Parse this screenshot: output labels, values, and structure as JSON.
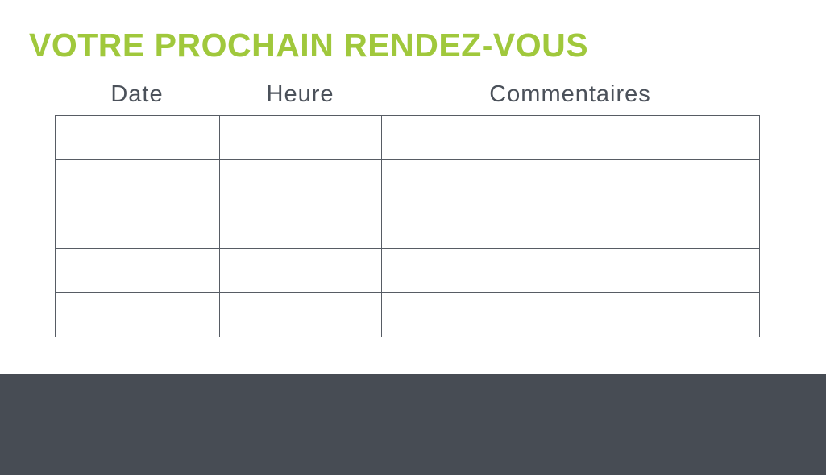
{
  "colors": {
    "accent-green": "#a0c83c",
    "footer-dark": "#474c54",
    "table-border": "#575c64",
    "header-text": "#4b515a"
  },
  "page": {
    "title": "VOTRE PROCHAIN RENDEZ-VOUS"
  },
  "table": {
    "columns": [
      {
        "label": "Date"
      },
      {
        "label": "Heure"
      },
      {
        "label": "Commentaires"
      }
    ],
    "rows": [
      [
        "",
        "",
        ""
      ],
      [
        "",
        "",
        ""
      ],
      [
        "",
        "",
        ""
      ],
      [
        "",
        "",
        ""
      ],
      [
        "",
        "",
        ""
      ]
    ]
  }
}
